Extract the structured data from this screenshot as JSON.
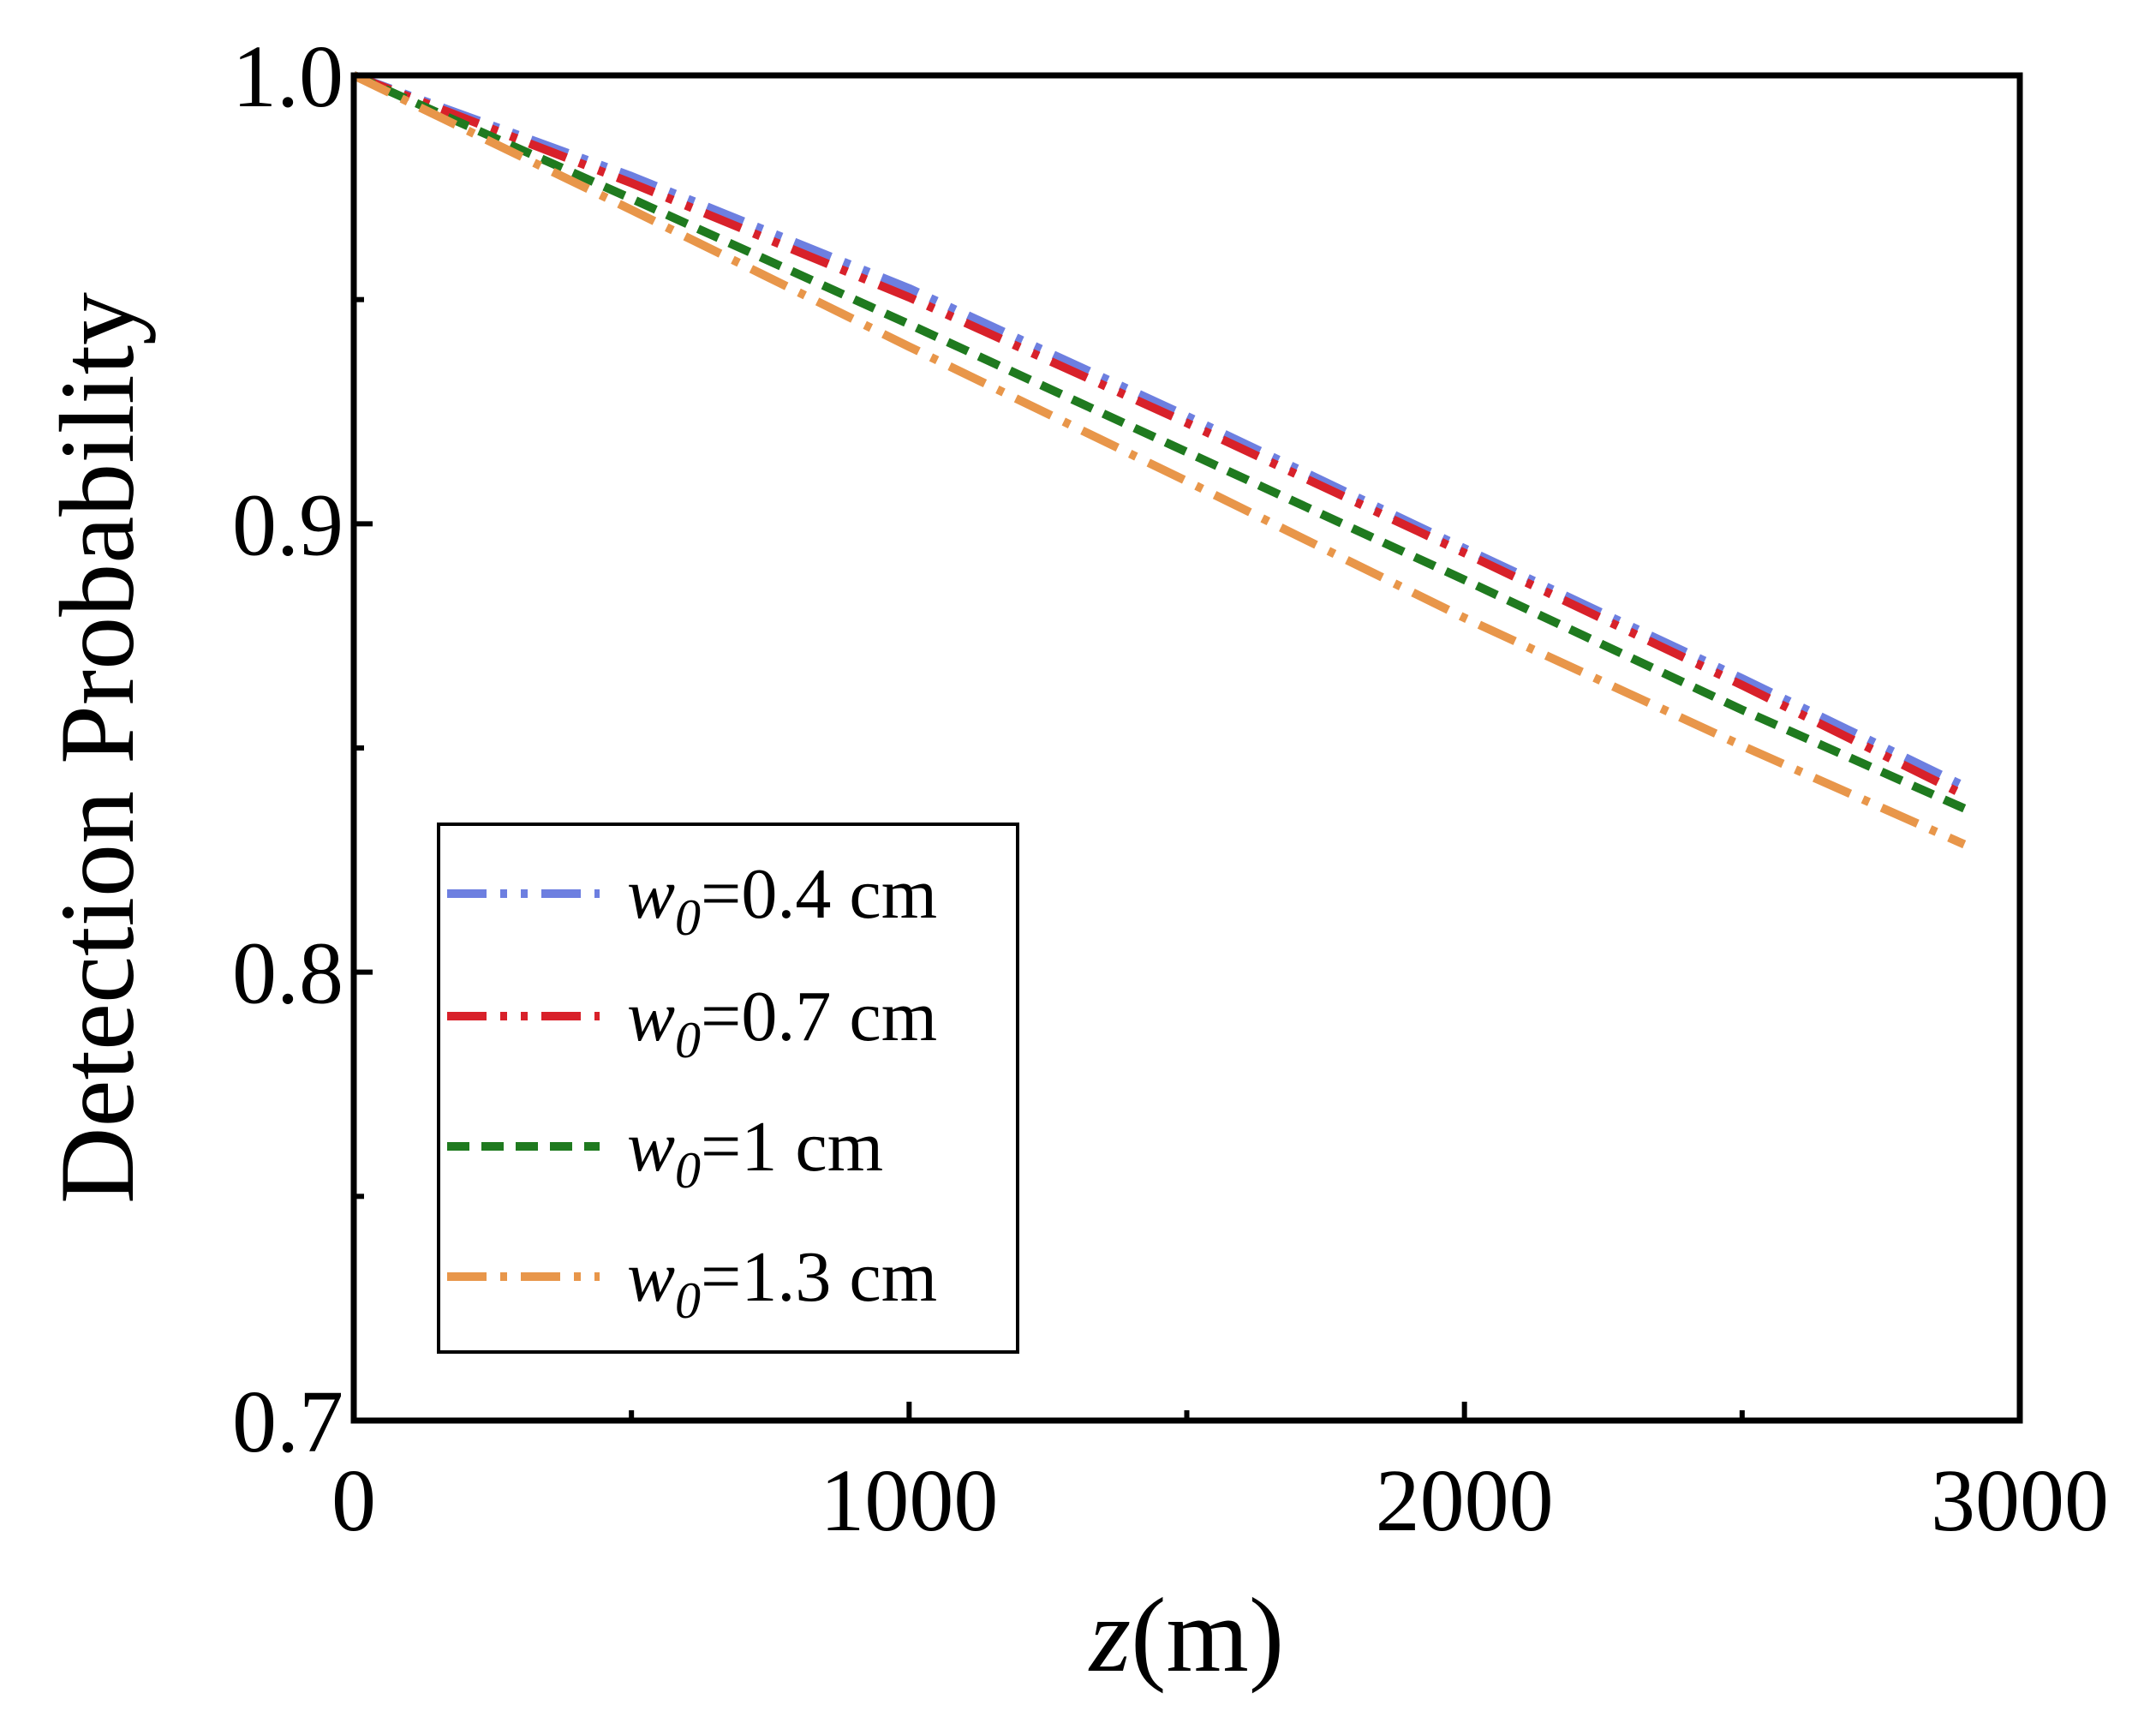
{
  "chart_data": {
    "type": "line",
    "title": "",
    "xlabel": {
      "var": "z",
      "unit": "(m)"
    },
    "ylabel": "Detection Probability",
    "xlim": [
      0,
      3000
    ],
    "ylim": [
      0.7,
      1.0
    ],
    "x_major_ticks": [
      0,
      1000,
      2000,
      3000
    ],
    "x_tick_labels": [
      "0",
      "1000",
      "2000",
      "3000"
    ],
    "x_minor_ticks": [
      500,
      1500,
      2500
    ],
    "y_major_ticks": [
      0.7,
      0.8,
      0.9,
      1.0
    ],
    "y_tick_labels": [
      "0.7",
      "0.8",
      "0.9",
      "1.0"
    ],
    "y_minor_ticks": [
      0.75,
      0.85,
      0.95
    ],
    "grid": false,
    "legend_position": "lower-left",
    "series": [
      {
        "name": "w0=0.4 cm",
        "label_var": "w",
        "label_sub": "0",
        "label_value": "=0.4 cm",
        "color": "#6d7fe0",
        "dash": "dashdotdot",
        "x": [
          0,
          500,
          1000,
          1500,
          2000,
          2500,
          2900
        ],
        "y": [
          1.0,
          0.9775,
          0.9525,
          0.924,
          0.8945,
          0.8655,
          0.8415
        ]
      },
      {
        "name": "w0=0.7 cm",
        "label_var": "w",
        "label_sub": "0",
        "label_value": "=0.7 cm",
        "color": "#d8212a",
        "dash": "dashdotdot",
        "x": [
          0,
          500,
          1000,
          1500,
          2000,
          2500,
          2900
        ],
        "y": [
          1.0,
          0.976,
          0.9505,
          0.9225,
          0.8935,
          0.864,
          0.8395
        ]
      },
      {
        "name": "w0=1 cm",
        "label_var": "w",
        "label_sub": "0",
        "label_value": "=1 cm",
        "color": "#1f7a1f",
        "dash": "dash",
        "x": [
          0,
          500,
          1000,
          1500,
          2000,
          2500,
          2900
        ],
        "y": [
          1.0,
          0.9725,
          0.9445,
          0.916,
          0.8875,
          0.8585,
          0.8365
        ]
      },
      {
        "name": "w0=1.3 cm",
        "label_var": "w",
        "label_sub": "0",
        "label_value": "=1.3 cm",
        "color": "#e8964a",
        "dash": "dashdot",
        "x": [
          0,
          500,
          1000,
          1500,
          2000,
          2500,
          2900
        ],
        "y": [
          1.0,
          0.97,
          0.9395,
          0.9095,
          0.879,
          0.8505,
          0.8285
        ]
      }
    ]
  }
}
